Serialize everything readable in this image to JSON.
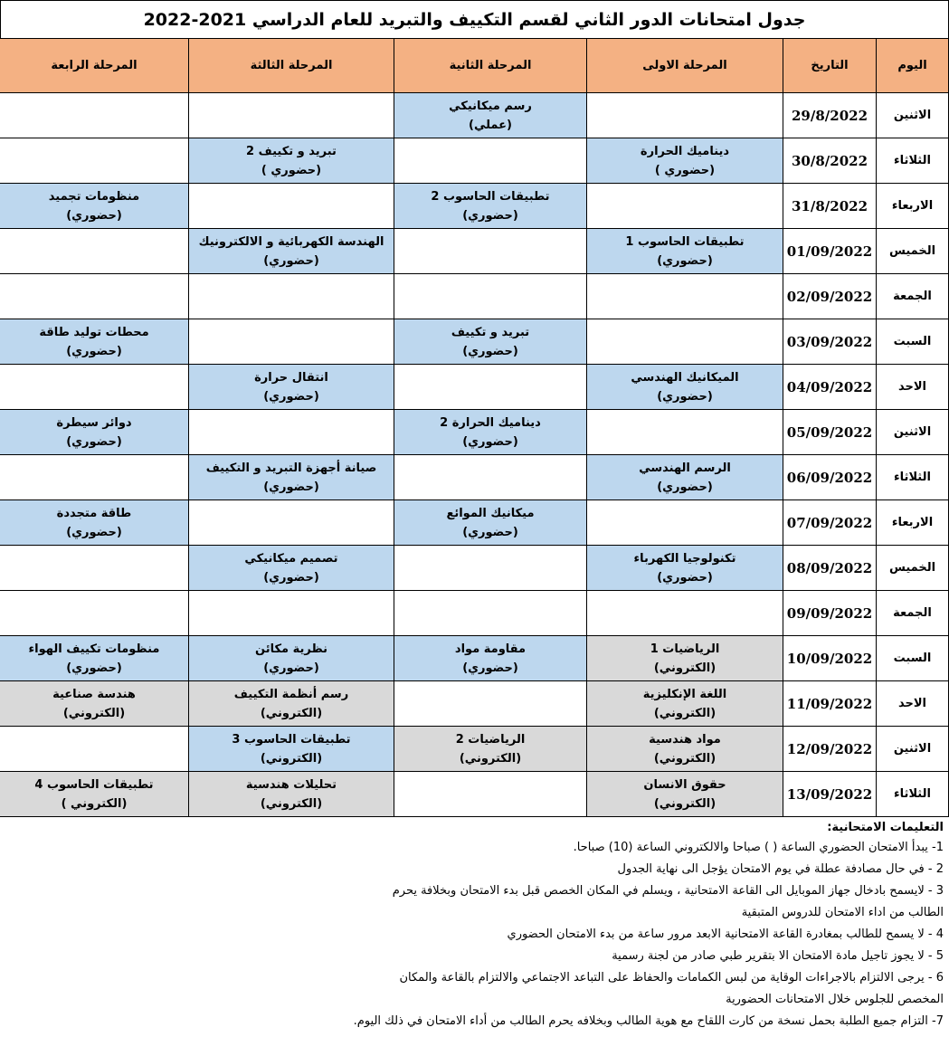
{
  "title": "جدول امتحانات الدور الثاني لقسم التكييف والتبريد للعام الدراسي 2021-2022",
  "table": {
    "headers": [
      "اليوم",
      "التاريخ",
      "المرحلة الاولى",
      "المرحلة الثانية",
      "المرحلة الثالثة",
      "المرحلة الرابعة"
    ],
    "header_color": "#f4b183",
    "rows": [
      {
        "day": "الاثنين",
        "date": "29/8/2022",
        "cells": [
          null,
          {
            "lines": [
              "رسم ميكانيكي",
              "(عملي)"
            ],
            "color": "#bdd7ee"
          },
          null,
          null
        ]
      },
      {
        "day": "الثلاثاء",
        "date": "30/8/2022",
        "cells": [
          {
            "lines": [
              "ديناميك الحرارة",
              "(حضوري )"
            ],
            "color": "#bdd7ee"
          },
          null,
          {
            "lines": [
              "تبريد و تكييف 2",
              "(حضوري )"
            ],
            "color": "#bdd7ee"
          },
          null
        ]
      },
      {
        "day": "الاربعاء",
        "date": "31/8/2022",
        "cells": [
          null,
          {
            "lines": [
              "تطبيقات الحاسوب 2",
              "(حضوري)"
            ],
            "color": "#bdd7ee"
          },
          null,
          {
            "lines": [
              "منظومات تجميد",
              "(حضوري)"
            ],
            "color": "#bdd7ee"
          }
        ]
      },
      {
        "day": "الخميس",
        "date": "01/09/2022",
        "cells": [
          {
            "lines": [
              "تطبيقات الحاسوب 1",
              "(حضوري)"
            ],
            "color": "#bdd7ee"
          },
          null,
          {
            "lines": [
              "الهندسة الكهربائية و الالكترونيك",
              "(حضوري)"
            ],
            "color": "#bdd7ee"
          },
          null
        ]
      },
      {
        "day": "الجمعة",
        "date": "02/09/2022",
        "cells": [
          null,
          null,
          null,
          null
        ]
      },
      {
        "day": "السبت",
        "date": "03/09/2022",
        "cells": [
          null,
          {
            "lines": [
              "تبريد و تكييف",
              "(حضوري)"
            ],
            "color": "#bdd7ee"
          },
          null,
          {
            "lines": [
              "محطات توليد طاقة",
              "(حضوري)"
            ],
            "color": "#bdd7ee"
          }
        ]
      },
      {
        "day": "الاحد",
        "date": "04/09/2022",
        "cells": [
          {
            "lines": [
              "الميكانيك الهندسي",
              "(حضوري)"
            ],
            "color": "#bdd7ee"
          },
          null,
          {
            "lines": [
              "انتقال حرارة",
              "(حضوري)"
            ],
            "color": "#bdd7ee"
          },
          null
        ]
      },
      {
        "day": "الاثنين",
        "date": "05/09/2022",
        "cells": [
          null,
          {
            "lines": [
              "ديناميك الحرارة 2",
              "(حضوري)"
            ],
            "color": "#bdd7ee"
          },
          null,
          {
            "lines": [
              "دوائر سيطرة",
              "(حضوري)"
            ],
            "color": "#bdd7ee"
          }
        ]
      },
      {
        "day": "الثلاثاء",
        "date": "06/09/2022",
        "cells": [
          {
            "lines": [
              "الرسم الهندسي",
              "(حضوري)"
            ],
            "color": "#bdd7ee"
          },
          null,
          {
            "lines": [
              "صيانة أجهزة التبريد و التكييف",
              "(حضوري)"
            ],
            "color": "#bdd7ee"
          },
          null
        ]
      },
      {
        "day": "الاربعاء",
        "date": "07/09/2022",
        "cells": [
          null,
          {
            "lines": [
              "ميكانيك الموائع",
              "(حضوري)"
            ],
            "color": "#bdd7ee"
          },
          null,
          {
            "lines": [
              "طاقة متجددة",
              "(حضوري)"
            ],
            "color": "#bdd7ee"
          }
        ]
      },
      {
        "day": "الخميس",
        "date": "08/09/2022",
        "cells": [
          {
            "lines": [
              "تكنولوجيا الكهرباء",
              "(حضوري)"
            ],
            "color": "#bdd7ee"
          },
          null,
          {
            "lines": [
              "تصميم ميكانيكي",
              "(حضوري)"
            ],
            "color": "#bdd7ee"
          },
          null
        ]
      },
      {
        "day": "الجمعة",
        "date": "09/09/2022",
        "cells": [
          null,
          null,
          null,
          null
        ]
      },
      {
        "day": "السبت",
        "date": "10/09/2022",
        "cells": [
          {
            "lines": [
              "الرياضيات 1",
              "(الكتروني)"
            ],
            "color": "#d9d9d9"
          },
          {
            "lines": [
              "مقاومة مواد",
              "(حضوري)"
            ],
            "color": "#bdd7ee"
          },
          {
            "lines": [
              "نظرية مكائن",
              "(حضوري)"
            ],
            "color": "#bdd7ee"
          },
          {
            "lines": [
              "منظومات تكييف الهواء",
              "(حضوري)"
            ],
            "color": "#bdd7ee"
          }
        ]
      },
      {
        "day": "الاحد",
        "date": "11/09/2022",
        "cells": [
          {
            "lines": [
              "اللغة الإنكليزية",
              "(الكتروني)"
            ],
            "color": "#d9d9d9"
          },
          null,
          {
            "lines": [
              "رسم أنظمة التكييف",
              "(الكتروني)"
            ],
            "color": "#d9d9d9"
          },
          {
            "lines": [
              "هندسة صناعية",
              "(الكتروني)"
            ],
            "color": "#d9d9d9"
          }
        ]
      },
      {
        "day": "الاثنين",
        "date": "12/09/2022",
        "cells": [
          {
            "lines": [
              "مواد هندسية",
              "(الكتروني)"
            ],
            "color": "#d9d9d9"
          },
          {
            "lines": [
              "الرياضيات 2",
              "(الكتروني)"
            ],
            "color": "#d9d9d9"
          },
          {
            "lines": [
              "تطبيقات الحاسوب 3",
              "(الكتروني)"
            ],
            "color": "#bdd7ee"
          },
          null
        ]
      },
      {
        "day": "الثلاثاء",
        "date": "13/09/2022",
        "cells": [
          {
            "lines": [
              "حقوق الانسان",
              "(الكتروني)"
            ],
            "color": "#d9d9d9"
          },
          null,
          {
            "lines": [
              "تحليلات هندسية",
              "(الكتروني)"
            ],
            "color": "#d9d9d9"
          },
          {
            "lines": [
              "تطبيقات الحاسوب 4",
              "(الكتروني )"
            ],
            "color": "#d9d9d9"
          }
        ]
      }
    ]
  },
  "instructions": {
    "heading": "التعليمات الامتحانية:",
    "lines": [
      "1- يبدأ الامتحان الحضوري الساعة (   ) صباحا والالكتروني الساعة (10) صباحا.",
      "2 - في حال مصادفة عطلة في يوم الامتحان يؤجل الى نهاية الجدول",
      "3 - لايسمح بادخال جهاز الموبايل الى القاعة الامتحانية ، ويسلم في المكان الخصص قبل بدء الامتحان وبخلافة يحرم",
      "الطالب من اداء الامتحان للدروس المتبقية",
      "4 - لا يسمح للطالب بمغادرة القاعة الامتحانية الابعد مرور ساعة من بدء الامتحان الحضوري",
      "5 - لا يجوز تاجيل مادة الامتحان الا بتقرير طبي صادر من لجنة رسمية",
      "6 - يرجى الالتزام بالاجراءات الوقاية من لبس الكمامات والحفاظ على التباعد الاجتماعي والالتزام بالقاعة والمكان",
      "المخصص للجلوس خلال الامتحانات الحضورية",
      "7- التزام جميع الطلبة بحمل نسخة من كارت اللقاح مع هوية الطالب وبخلافه يحرم الطالب من أداء الامتحان في ذلك اليوم."
    ]
  }
}
